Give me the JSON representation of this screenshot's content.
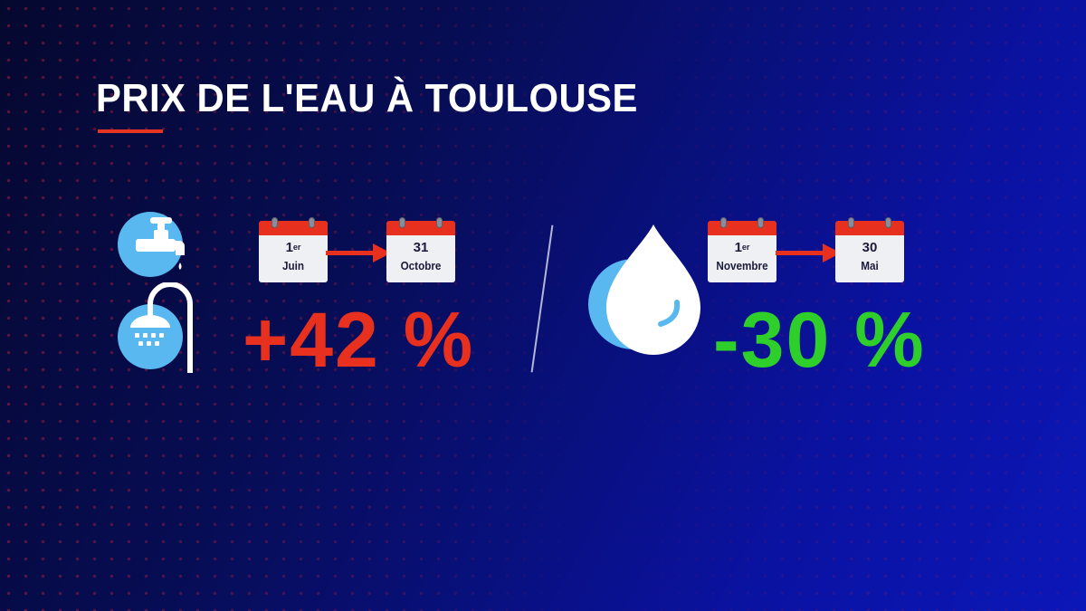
{
  "title": "PRIX DE L'EAU À TOULOUSE",
  "colors": {
    "accent_red": "#e8301f",
    "increase": "#e8301f",
    "decrease": "#2fcf2b",
    "icon_blue": "#5ab8f0"
  },
  "summer": {
    "icons": [
      "faucet-icon",
      "shower-icon"
    ],
    "start": {
      "day": "1",
      "day_suffix": "er",
      "month": "Juin"
    },
    "end": {
      "day": "31",
      "day_suffix": "",
      "month": "Octobre"
    },
    "change": "+42 %"
  },
  "winter": {
    "icons": [
      "water-drop-icon"
    ],
    "start": {
      "day": "1",
      "day_suffix": "er",
      "month": "Novembre"
    },
    "end": {
      "day": "30",
      "day_suffix": "",
      "month": "Mai"
    },
    "change": "-30 %"
  }
}
